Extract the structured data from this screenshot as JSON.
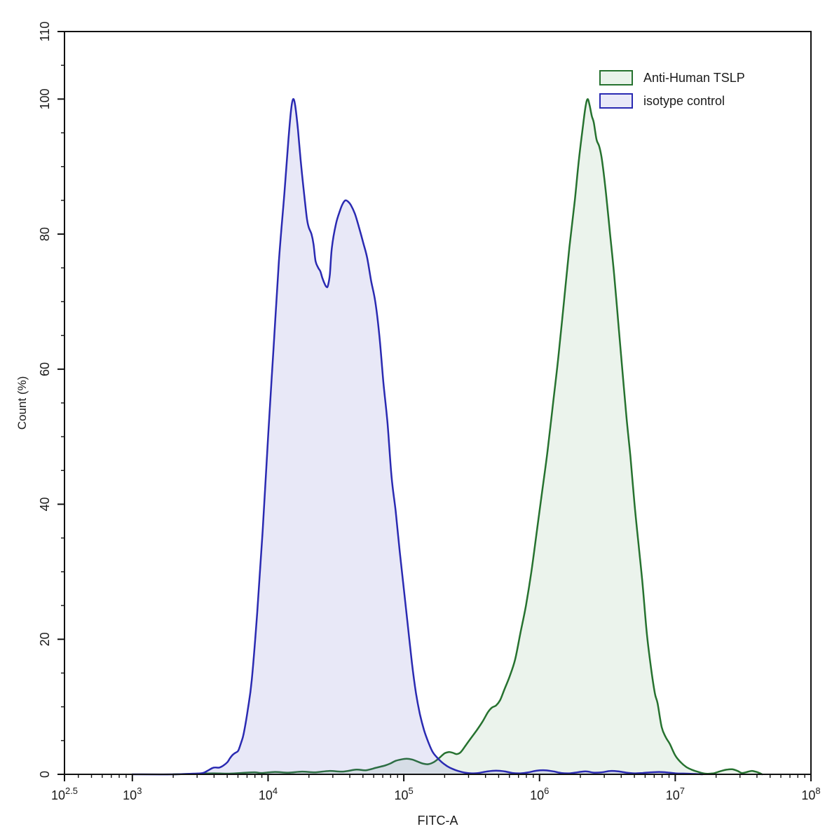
{
  "figure": {
    "background": "#ffffff",
    "axis_color": "#111111",
    "text_color": "#1a1a1a"
  },
  "legend": {
    "position": "top-right",
    "entries": [
      {
        "label": "Anti-Human TSLP",
        "stroke": "#26722f",
        "fill": "#e9f3ea"
      },
      {
        "label": "isotype control",
        "stroke": "#2a2ab2",
        "fill": "#e9e9f8"
      }
    ]
  },
  "chart_data": {
    "type": "area",
    "title": "",
    "xlabel": "FITC-A",
    "ylabel": "Count (%)",
    "x_scale": "log10",
    "xlim_log10": [
      2.5,
      8
    ],
    "ylim": [
      0,
      110
    ],
    "grid": false,
    "legend_position": "top-right",
    "x_major_ticks": [
      {
        "log10": 2.5,
        "base": "10",
        "exp": "2.5"
      },
      {
        "log10": 3,
        "base": "10",
        "exp": "3"
      },
      {
        "log10": 4,
        "base": "10",
        "exp": "4"
      },
      {
        "log10": 5,
        "base": "10",
        "exp": "5"
      },
      {
        "log10": 6,
        "base": "10",
        "exp": "6"
      },
      {
        "log10": 7,
        "base": "10",
        "exp": "7"
      },
      {
        "log10": 8,
        "base": "10",
        "exp": "8"
      }
    ],
    "y_major_ticks": [
      0,
      20,
      40,
      60,
      80,
      100,
      110
    ],
    "y_minor_step": 5,
    "series": [
      {
        "name": "Anti-Human TSLP",
        "stroke": "#26722f",
        "fill": "rgba(90,160,100,0.12)",
        "peak_log10x": 6.35,
        "peak_y": 100,
        "points_log10x_y": [
          [
            3.3,
            0
          ],
          [
            3.5,
            0.1
          ],
          [
            3.6,
            0.15
          ],
          [
            3.7,
            0.1
          ],
          [
            3.8,
            0.2
          ],
          [
            3.9,
            0.3
          ],
          [
            3.95,
            0.2
          ],
          [
            4.05,
            0.35
          ],
          [
            4.15,
            0.25
          ],
          [
            4.25,
            0.4
          ],
          [
            4.35,
            0.3
          ],
          [
            4.45,
            0.5
          ],
          [
            4.55,
            0.4
          ],
          [
            4.65,
            0.7
          ],
          [
            4.72,
            0.6
          ],
          [
            4.8,
            1.0
          ],
          [
            4.86,
            1.3
          ],
          [
            4.9,
            1.6
          ],
          [
            4.94,
            2.0
          ],
          [
            4.98,
            2.2
          ],
          [
            5.02,
            2.3
          ],
          [
            5.06,
            2.2
          ],
          [
            5.1,
            1.9
          ],
          [
            5.14,
            1.6
          ],
          [
            5.18,
            1.5
          ],
          [
            5.22,
            1.8
          ],
          [
            5.26,
            2.4
          ],
          [
            5.3,
            3.1
          ],
          [
            5.33,
            3.3
          ],
          [
            5.36,
            3.2
          ],
          [
            5.39,
            3.0
          ],
          [
            5.42,
            3.3
          ],
          [
            5.46,
            4.4
          ],
          [
            5.5,
            5.5
          ],
          [
            5.54,
            6.6
          ],
          [
            5.58,
            7.8
          ],
          [
            5.62,
            9.2
          ],
          [
            5.65,
            9.9
          ],
          [
            5.68,
            10.2
          ],
          [
            5.71,
            11.0
          ],
          [
            5.74,
            12.5
          ],
          [
            5.78,
            14.5
          ],
          [
            5.82,
            17
          ],
          [
            5.86,
            21
          ],
          [
            5.9,
            25
          ],
          [
            5.94,
            30
          ],
          [
            5.98,
            36
          ],
          [
            6.02,
            42
          ],
          [
            6.06,
            48
          ],
          [
            6.1,
            55
          ],
          [
            6.14,
            62
          ],
          [
            6.18,
            70
          ],
          [
            6.22,
            78
          ],
          [
            6.26,
            85
          ],
          [
            6.29,
            91
          ],
          [
            6.32,
            96
          ],
          [
            6.34,
            99
          ],
          [
            6.355,
            100
          ],
          [
            6.37,
            99
          ],
          [
            6.385,
            97.5
          ],
          [
            6.4,
            96.5
          ],
          [
            6.42,
            94
          ],
          [
            6.44,
            93
          ],
          [
            6.46,
            91
          ],
          [
            6.49,
            86
          ],
          [
            6.52,
            80
          ],
          [
            6.55,
            74
          ],
          [
            6.58,
            67
          ],
          [
            6.61,
            60
          ],
          [
            6.64,
            53
          ],
          [
            6.67,
            47
          ],
          [
            6.7,
            40
          ],
          [
            6.73,
            34
          ],
          [
            6.76,
            28
          ],
          [
            6.79,
            21
          ],
          [
            6.82,
            16
          ],
          [
            6.85,
            12
          ],
          [
            6.87,
            10.5
          ],
          [
            6.9,
            7
          ],
          [
            6.93,
            5.5
          ],
          [
            6.96,
            4.5
          ],
          [
            7.0,
            2.8
          ],
          [
            7.04,
            1.8
          ],
          [
            7.08,
            1.1
          ],
          [
            7.12,
            0.7
          ],
          [
            7.17,
            0.35
          ],
          [
            7.22,
            0.1
          ],
          [
            7.28,
            0.15
          ],
          [
            7.33,
            0.45
          ],
          [
            7.38,
            0.7
          ],
          [
            7.42,
            0.75
          ],
          [
            7.46,
            0.5
          ],
          [
            7.49,
            0.2
          ],
          [
            7.52,
            0.3
          ],
          [
            7.56,
            0.5
          ],
          [
            7.59,
            0.4
          ],
          [
            7.62,
            0.2
          ],
          [
            7.64,
            0
          ]
        ]
      },
      {
        "name": "isotype control",
        "stroke": "#2a2ab2",
        "fill": "rgba(90,90,200,0.14)",
        "peak_log10x": 4.18,
        "peak_y": 100,
        "points_log10x_y": [
          [
            3.0,
            0
          ],
          [
            3.3,
            0
          ],
          [
            3.45,
            0.1
          ],
          [
            3.52,
            0.2
          ],
          [
            3.56,
            0.6
          ],
          [
            3.6,
            1.0
          ],
          [
            3.64,
            1.0
          ],
          [
            3.67,
            1.3
          ],
          [
            3.7,
            1.8
          ],
          [
            3.72,
            2.4
          ],
          [
            3.74,
            2.9
          ],
          [
            3.76,
            3.2
          ],
          [
            3.78,
            3.5
          ],
          [
            3.8,
            4.6
          ],
          [
            3.82,
            6.0
          ],
          [
            3.85,
            9.5
          ],
          [
            3.88,
            14
          ],
          [
            3.92,
            24
          ],
          [
            3.96,
            36
          ],
          [
            4.0,
            50
          ],
          [
            4.04,
            63
          ],
          [
            4.08,
            76
          ],
          [
            4.12,
            86
          ],
          [
            4.15,
            94
          ],
          [
            4.17,
            98.5
          ],
          [
            4.185,
            100
          ],
          [
            4.2,
            99
          ],
          [
            4.22,
            95.5
          ],
          [
            4.24,
            91
          ],
          [
            4.26,
            87
          ],
          [
            4.285,
            82.5
          ],
          [
            4.3,
            81
          ],
          [
            4.32,
            80
          ],
          [
            4.335,
            78.5
          ],
          [
            4.35,
            76
          ],
          [
            4.37,
            75
          ],
          [
            4.385,
            74.5
          ],
          [
            4.4,
            73.5
          ],
          [
            4.42,
            72.5
          ],
          [
            4.43,
            72.2
          ],
          [
            4.44,
            72.3
          ],
          [
            4.455,
            74
          ],
          [
            4.47,
            78
          ],
          [
            4.5,
            81.5
          ],
          [
            4.53,
            83.5
          ],
          [
            4.55,
            84.5
          ],
          [
            4.57,
            85
          ],
          [
            4.59,
            84.8
          ],
          [
            4.61,
            84.3
          ],
          [
            4.64,
            83
          ],
          [
            4.67,
            81
          ],
          [
            4.7,
            78.8
          ],
          [
            4.73,
            76.5
          ],
          [
            4.76,
            73
          ],
          [
            4.79,
            70
          ],
          [
            4.82,
            65
          ],
          [
            4.85,
            58
          ],
          [
            4.88,
            52
          ],
          [
            4.91,
            44
          ],
          [
            4.94,
            39
          ],
          [
            4.97,
            33
          ],
          [
            5.0,
            27.5
          ],
          [
            5.03,
            22
          ],
          [
            5.06,
            16.5
          ],
          [
            5.09,
            12
          ],
          [
            5.12,
            8.8
          ],
          [
            5.15,
            6.5
          ],
          [
            5.18,
            4.8
          ],
          [
            5.21,
            3.4
          ],
          [
            5.24,
            2.6
          ],
          [
            5.28,
            1.8
          ],
          [
            5.32,
            1.2
          ],
          [
            5.36,
            0.8
          ],
          [
            5.4,
            0.5
          ],
          [
            5.45,
            0.25
          ],
          [
            5.5,
            0.15
          ],
          [
            5.55,
            0.2
          ],
          [
            5.62,
            0.45
          ],
          [
            5.68,
            0.55
          ],
          [
            5.74,
            0.45
          ],
          [
            5.8,
            0.2
          ],
          [
            5.86,
            0.15
          ],
          [
            5.92,
            0.3
          ],
          [
            5.98,
            0.55
          ],
          [
            6.04,
            0.6
          ],
          [
            6.1,
            0.45
          ],
          [
            6.16,
            0.2
          ],
          [
            6.22,
            0.15
          ],
          [
            6.28,
            0.3
          ],
          [
            6.34,
            0.45
          ],
          [
            6.4,
            0.25
          ],
          [
            6.46,
            0.3
          ],
          [
            6.52,
            0.5
          ],
          [
            6.58,
            0.45
          ],
          [
            6.64,
            0.25
          ],
          [
            6.7,
            0.15
          ],
          [
            6.76,
            0.2
          ],
          [
            6.82,
            0.3
          ],
          [
            6.88,
            0.35
          ],
          [
            6.93,
            0.3
          ],
          [
            7.0,
            0.15
          ],
          [
            7.08,
            0.1
          ],
          [
            7.15,
            0.05
          ],
          [
            7.2,
            0
          ]
        ]
      }
    ]
  }
}
